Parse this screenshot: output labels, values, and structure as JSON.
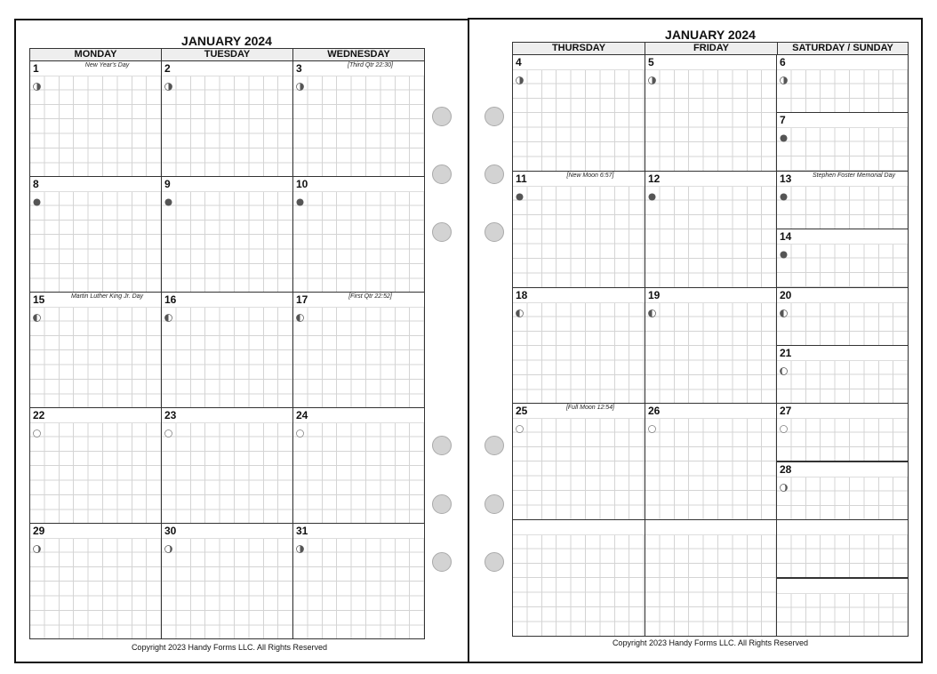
{
  "left_page": {
    "title": "JANUARY 2024",
    "day_headers": [
      "MONDAY",
      "TUESDAY",
      "WEDNESDAY"
    ],
    "weeks": [
      [
        {
          "day": "1",
          "note": "New Year's Day",
          "moon": "third-quarter"
        },
        {
          "day": "2",
          "note": "",
          "moon": "third-quarter"
        },
        {
          "day": "3",
          "note": "[Third Qtr 22:30]",
          "moon": "third-quarter"
        }
      ],
      [
        {
          "day": "8",
          "note": "",
          "moon": "new"
        },
        {
          "day": "9",
          "note": "",
          "moon": "new"
        },
        {
          "day": "10",
          "note": "",
          "moon": "new"
        }
      ],
      [
        {
          "day": "15",
          "note": "Martin Luther King Jr. Day",
          "moon": "first-quarter"
        },
        {
          "day": "16",
          "note": "",
          "moon": "first-quarter"
        },
        {
          "day": "17",
          "note": "[First Qtr 22:52]",
          "moon": "first-quarter"
        }
      ],
      [
        {
          "day": "22",
          "note": "",
          "moon": "full"
        },
        {
          "day": "23",
          "note": "",
          "moon": "full"
        },
        {
          "day": "24",
          "note": "",
          "moon": "full"
        }
      ],
      [
        {
          "day": "29",
          "note": "",
          "moon": "waning"
        },
        {
          "day": "30",
          "note": "",
          "moon": "waning"
        },
        {
          "day": "31",
          "note": "",
          "moon": "third-quarter"
        }
      ]
    ],
    "footer": "Copyright 2023 Handy Forms LLC. All Rights Reserved"
  },
  "right_page": {
    "title": "JANUARY 2024",
    "day_headers": [
      "THURSDAY",
      "FRIDAY",
      "SATURDAY / SUNDAY"
    ],
    "weeks": [
      [
        {
          "day": "4",
          "note": "",
          "moon": "third-quarter"
        },
        {
          "day": "5",
          "note": "",
          "moon": "third-quarter"
        },
        {
          "day": "6",
          "note": "",
          "moon": "third-quarter"
        },
        {
          "day": "7",
          "note": "",
          "moon": "new"
        }
      ],
      [
        {
          "day": "11",
          "note": "[New Moon 6:57]",
          "moon": "new"
        },
        {
          "day": "12",
          "note": "",
          "moon": "new"
        },
        {
          "day": "13",
          "note": "Stephen Foster Memorial Day",
          "moon": "new"
        },
        {
          "day": "14",
          "note": "",
          "moon": "new"
        }
      ],
      [
        {
          "day": "18",
          "note": "",
          "moon": "first-quarter"
        },
        {
          "day": "19",
          "note": "",
          "moon": "first-quarter"
        },
        {
          "day": "20",
          "note": "",
          "moon": "first-quarter"
        },
        {
          "day": "21",
          "note": "",
          "moon": "waxing"
        }
      ],
      [
        {
          "day": "25",
          "note": "[Full Moon 12:54]",
          "moon": "full"
        },
        {
          "day": "26",
          "note": "",
          "moon": "full"
        },
        {
          "day": "27",
          "note": "",
          "moon": "full"
        },
        {
          "day": "28",
          "note": "",
          "moon": "waning"
        }
      ],
      [
        {
          "day": "",
          "note": "",
          "moon": ""
        },
        {
          "day": "",
          "note": "",
          "moon": ""
        },
        {
          "day": "",
          "note": "",
          "moon": ""
        },
        {
          "day": "",
          "note": "",
          "moon": ""
        }
      ]
    ],
    "footer": "Copyright 2023 Handy Forms LLC. All Rights Reserved"
  },
  "colors": {
    "moon_dark": "#555555",
    "grid": "#d4d4d4",
    "header_bg": "#eeeeee"
  }
}
